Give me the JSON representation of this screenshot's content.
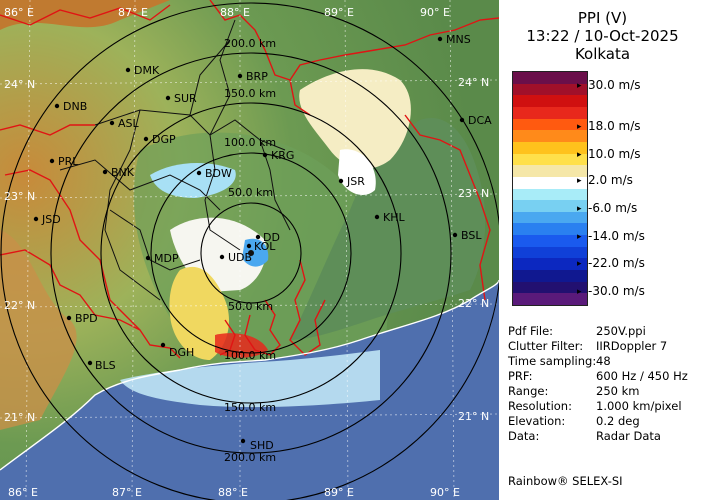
{
  "map": {
    "lon_labels_top": [
      "86° E",
      "87° E",
      "88° E",
      "89° E",
      "90° E"
    ],
    "lon_labels_bottom": [
      "86° E",
      "87° E",
      "88° E",
      "89° E",
      "90° E"
    ],
    "lat_labels_left": [
      "24° N",
      "23° N",
      "22° N",
      "21° N"
    ],
    "lat_labels_right": [
      "24° N",
      "23° N",
      "22° N",
      "21° N"
    ],
    "range_rings_top": [
      "200.0 km",
      "150.0 km",
      "100.0 km",
      "50.0 km"
    ],
    "range_rings_bottom": [
      "50.0 km",
      "100.0 km",
      "150.0 km",
      "200.0 km"
    ],
    "stations": [
      "MNS",
      "DMK",
      "BRP",
      "DNB",
      "SUR",
      "DCA",
      "ASL",
      "DGP",
      "KRG",
      "PRL",
      "BNK",
      "BDW",
      "JSR",
      "JSD",
      "KHL",
      "MDP",
      "DD",
      "KOL",
      "BSL",
      "UDB",
      "BPD",
      "DGH",
      "BLS",
      "SHD"
    ]
  },
  "panel": {
    "title": "PPI (V)",
    "datetime": "13:22 / 10-Oct-2025",
    "location": "Kolkata",
    "scale_labels": [
      "30.0 m/s",
      "18.0 m/s",
      "10.0 m/s",
      "2.0 m/s",
      "-6.0 m/s",
      "-14.0 m/s",
      "-22.0 m/s",
      "-30.0 m/s"
    ],
    "scale_colors": [
      "#6a0f4a",
      "#a0102a",
      "#d01010",
      "#e8281c",
      "#ff5a10",
      "#ff8a1a",
      "#ffc21c",
      "#ffe04a",
      "#f5e7a8",
      "#ffffff",
      "#a8ecf8",
      "#78d0f2",
      "#4aa8f0",
      "#2a80f0",
      "#1a5aee",
      "#1040d8",
      "#0c28c0",
      "#101890",
      "#221070",
      "#5a1a7a"
    ],
    "info": [
      {
        "key": "Pdf File:",
        "value": "250V.ppi"
      },
      {
        "key": "Clutter Filter:",
        "value": "IIRDoppler 7"
      },
      {
        "key": "Time sampling:",
        "value": "48"
      },
      {
        "key": "PRF:",
        "value": "600 Hz / 450 Hz"
      },
      {
        "key": "Range:",
        "value": "250 km"
      },
      {
        "key": "Resolution:",
        "value": "1.000 km/pixel"
      },
      {
        "key": "Elevation:",
        "value": "0.2 deg"
      },
      {
        "key": "Data:",
        "value": "Radar Data"
      }
    ],
    "footer": "Rainbow® SELEX-SI"
  }
}
